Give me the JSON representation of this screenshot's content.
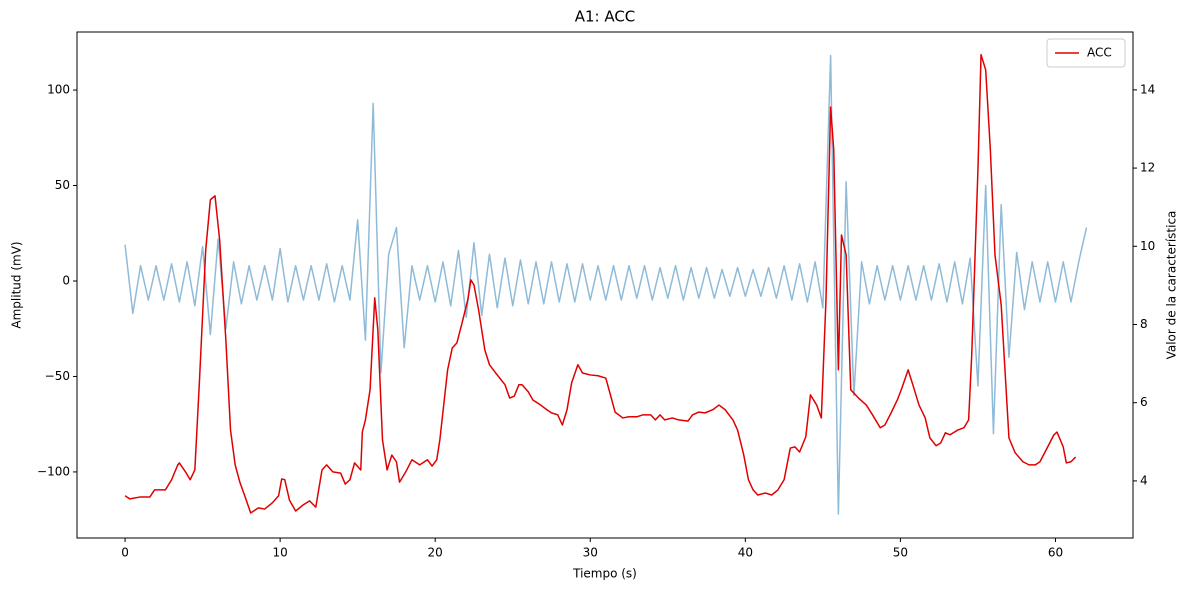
{
  "chart_data": {
    "type": "line",
    "title": "A1: ACC",
    "xlabel": "Tiempo (s)",
    "ylabel": "Amplitud (mV)",
    "y2label": "Valor de la característica",
    "xlim": [
      -3.1,
      65.0
    ],
    "ylim": [
      -134.6,
      130.4
    ],
    "y2lim": [
      2.54,
      15.48
    ],
    "xticks": [
      0,
      10,
      20,
      30,
      40,
      50,
      60
    ],
    "yticks": [
      {
        "value": -100,
        "label": "−100"
      },
      {
        "value": -50,
        "label": "−50"
      },
      0,
      50,
      100
    ],
    "y2ticks": [
      4,
      6,
      8,
      10,
      12,
      14
    ],
    "legend": "upper right",
    "series": [
      {
        "color": "#8fbbd9",
        "x": [
          0,
          0.5,
          1,
          1.5,
          2,
          2.5,
          3,
          3.5,
          4,
          4.5,
          5,
          5.5,
          6,
          6.5,
          7,
          7.5,
          8,
          8.5,
          9,
          9.5,
          10,
          10.5,
          11,
          11.5,
          12,
          12.5,
          13,
          13.5,
          14,
          14.5,
          15,
          15.5,
          16,
          16.5,
          17,
          17.5,
          18,
          18.5,
          19,
          19.5,
          20,
          20.5,
          21,
          21.5,
          22,
          22.5,
          23,
          23.5,
          24,
          24.5,
          25,
          25.5,
          26,
          26.5,
          27,
          27.5,
          28,
          28.5,
          29,
          29.5,
          30,
          30.5,
          31,
          31.5,
          32,
          32.5,
          33,
          33.5,
          34,
          34.5,
          35,
          35.5,
          36,
          36.5,
          37,
          37.5,
          38,
          38.5,
          39,
          39.5,
          40,
          40.5,
          41,
          41.5,
          42,
          42.5,
          43,
          43.5,
          44,
          44.5,
          45,
          45.5,
          46,
          46.5,
          47,
          47.5,
          48,
          48.5,
          49,
          49.5,
          50,
          50.5,
          51,
          51.5,
          52,
          52.5,
          53,
          53.5,
          54,
          54.5,
          55,
          55.5,
          56,
          56.5,
          57,
          57.5,
          58,
          58.5,
          59,
          59.5,
          60,
          60.5,
          61,
          61.5,
          62
        ],
        "values": [
          19,
          -17,
          8,
          -10,
          8,
          -10,
          9,
          -11,
          10,
          -13,
          18,
          -28,
          22,
          -25,
          10,
          -12,
          8,
          -10,
          8,
          -10,
          17,
          -11,
          8,
          -10,
          8,
          -10,
          9,
          -11,
          8,
          -10,
          32,
          -31,
          93,
          -48,
          14,
          28,
          -35,
          8,
          -10,
          8,
          -11,
          10,
          -13,
          16,
          -19,
          20,
          -18,
          14,
          -14,
          12,
          -13,
          11,
          -12,
          10,
          -12,
          10,
          -11,
          9,
          -11,
          9,
          -10,
          8,
          -10,
          8,
          -10,
          8,
          -9,
          8,
          -10,
          7,
          -9,
          8,
          -10,
          7,
          -9,
          7,
          -9,
          6,
          -8,
          7,
          -8,
          6,
          -8,
          7,
          -9,
          8,
          -10,
          9,
          -11,
          10,
          -14,
          118,
          -122,
          52,
          -60,
          10,
          -12,
          8,
          -10,
          8,
          -10,
          8,
          -10,
          8,
          -10,
          9,
          -11,
          10,
          -12,
          12,
          -55,
          50,
          -80,
          40,
          -40,
          15,
          -15,
          10,
          -11,
          10,
          -11,
          10,
          -11,
          10,
          28
        ]
      },
      {
        "name": "ACC",
        "color": "#e00000",
        "axis": "y2",
        "x": [
          0,
          0.3,
          1.0,
          1.6,
          1.9,
          2.6,
          3.0,
          3.4,
          3.5,
          3.9,
          4.2,
          4.5,
          4.8,
          5.2,
          5.5,
          5.8,
          6.1,
          6.5,
          6.8,
          7.1,
          7.4,
          7.7,
          8.1,
          8.6,
          9.0,
          9.5,
          9.9,
          10.1,
          10.3,
          10.6,
          11.0,
          11.5,
          11.9,
          12.3,
          12.7,
          13.0,
          13.4,
          13.9,
          14.2,
          14.5,
          14.8,
          15.2,
          15.3,
          15.5,
          15.8,
          16.1,
          16.3,
          16.6,
          16.9,
          17.2,
          17.5,
          17.7,
          18.1,
          18.5,
          19.0,
          19.5,
          19.8,
          20.1,
          20.3,
          20.8,
          21.1,
          21.4,
          21.7,
          22.1,
          22.3,
          22.5,
          22.8,
          23.2,
          23.5,
          23.9,
          24.5,
          24.8,
          25.1,
          25.4,
          25.6,
          26.0,
          26.3,
          26.8,
          27.2,
          27.5,
          27.9,
          28.2,
          28.5,
          28.8,
          29.2,
          29.5,
          30.0,
          30.5,
          31.0,
          31.3,
          31.6,
          32.1,
          32.5,
          33.0,
          33.4,
          33.9,
          34.2,
          34.5,
          34.8,
          35.3,
          35.7,
          36.3,
          36.6,
          37.0,
          37.4,
          37.9,
          38.3,
          38.7,
          39.2,
          39.5,
          39.9,
          40.2,
          40.5,
          40.8,
          41.3,
          41.7,
          42.1,
          42.5,
          42.9,
          43.2,
          43.5,
          43.9,
          44.2,
          44.6,
          44.9,
          45.2,
          45.5,
          45.7,
          46.0,
          46.2,
          46.5,
          46.8,
          47.3,
          47.8,
          48.2,
          48.7,
          49.0,
          49.4,
          49.8,
          50.1,
          50.5,
          50.8,
          51.2,
          51.6,
          51.9,
          52.3,
          52.6,
          52.9,
          53.2,
          53.7,
          54.1,
          54.4,
          54.6,
          55.0,
          55.2,
          55.5,
          55.8,
          56.1,
          56.5,
          57.0,
          57.4,
          57.9,
          58.3,
          58.7,
          59.0,
          59.5,
          59.9,
          60.1,
          60.5,
          60.7,
          61.0,
          61.3
        ],
        "values": [
          3.62,
          3.54,
          3.59,
          3.59,
          3.77,
          3.77,
          4.03,
          4.41,
          4.46,
          4.23,
          4.03,
          4.28,
          6.58,
          9.9,
          11.19,
          11.29,
          10.16,
          7.6,
          5.3,
          4.41,
          3.97,
          3.64,
          3.18,
          3.31,
          3.28,
          3.44,
          3.62,
          4.05,
          4.03,
          3.51,
          3.23,
          3.39,
          3.49,
          3.33,
          4.28,
          4.41,
          4.23,
          4.2,
          3.92,
          4.03,
          4.46,
          4.28,
          5.25,
          5.56,
          6.33,
          8.68,
          7.86,
          5.05,
          4.28,
          4.66,
          4.49,
          3.97,
          4.23,
          4.54,
          4.41,
          4.54,
          4.38,
          4.54,
          5.05,
          6.84,
          7.4,
          7.53,
          7.99,
          8.63,
          9.14,
          9.01,
          8.37,
          7.35,
          6.97,
          6.76,
          6.46,
          6.12,
          6.17,
          6.46,
          6.46,
          6.28,
          6.07,
          5.94,
          5.82,
          5.74,
          5.69,
          5.43,
          5.82,
          6.51,
          6.97,
          6.76,
          6.71,
          6.69,
          6.63,
          6.2,
          5.76,
          5.61,
          5.64,
          5.64,
          5.69,
          5.69,
          5.56,
          5.69,
          5.56,
          5.61,
          5.56,
          5.53,
          5.69,
          5.76,
          5.74,
          5.82,
          5.94,
          5.82,
          5.56,
          5.3,
          4.66,
          4.03,
          3.77,
          3.64,
          3.69,
          3.64,
          3.77,
          4.03,
          4.84,
          4.87,
          4.74,
          5.13,
          6.2,
          5.94,
          5.61,
          8.63,
          13.56,
          12.47,
          6.84,
          10.29,
          9.78,
          6.33,
          6.12,
          5.94,
          5.69,
          5.36,
          5.43,
          5.74,
          6.07,
          6.38,
          6.84,
          6.46,
          5.94,
          5.61,
          5.1,
          4.9,
          4.97,
          5.23,
          5.18,
          5.3,
          5.36,
          5.56,
          7.22,
          11.95,
          14.9,
          14.51,
          12.47,
          9.78,
          8.5,
          5.1,
          4.72,
          4.49,
          4.41,
          4.41,
          4.49,
          4.87,
          5.18,
          5.25,
          4.87,
          4.46,
          4.49,
          4.61
        ]
      }
    ]
  }
}
